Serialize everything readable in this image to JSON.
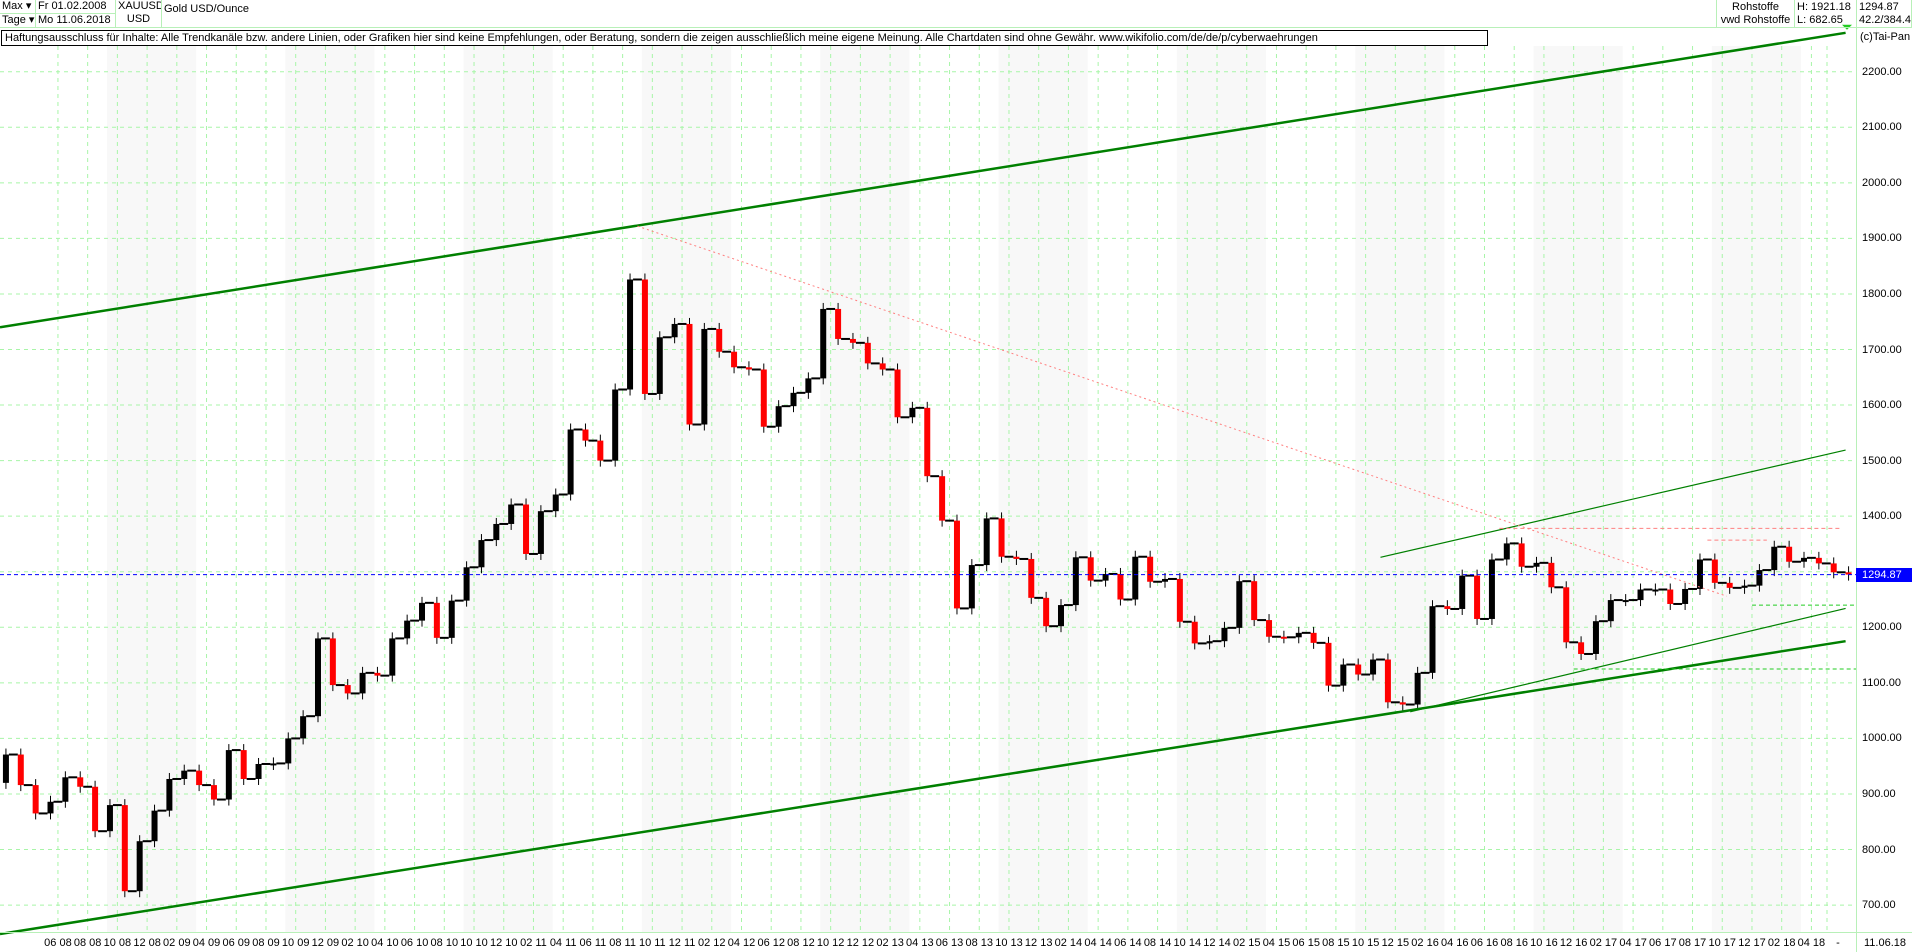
{
  "header": {
    "range_label": "Max",
    "interval_label": "Tage",
    "start_date": "Fr 01.02.2008",
    "end_date": "Mo 11.06.2018",
    "symbol": "XAUUSD",
    "currency": "USD",
    "instrument_name": "Gold USD/Ounce",
    "category": "Rohstoffe",
    "source": "vwd Rohstoffe",
    "high": "H: 1921.18",
    "low": "L: 682.65",
    "last": "1294.87",
    "stats": "42.2/384.4",
    "copyright": "(c)Tai-Pan"
  },
  "disclaimer": "Haftungsausschluss für Inhalte: Alle Trendkanäle bzw. andere Linien, oder Grafiken hier sind keine Empfehlungen, oder Beratung, sondern die zeigen ausschließlich meine eigene Meinung. Alle Chartdaten sind ohne Gewähr.  www.wikifolio.com/de/de/p/cyberwaehrungen",
  "colors": {
    "up": "#000000",
    "down": "#ff0000",
    "channel": "#008000",
    "grid": "#a8f5a8",
    "last_line": "#0000ff",
    "resistance": "#ff8080",
    "support": "#22cc22",
    "shade": "#f8f8f8"
  },
  "chart_data": {
    "type": "candlestick",
    "title": "Gold USD/Ounce",
    "x_start": "2008-02",
    "ylim": [
      630,
      2290
    ],
    "grid": true,
    "y_ticks": [
      "2200.00",
      "2100.00",
      "2000.00",
      "1900.00",
      "1800.00",
      "1700.00",
      "1600.00",
      "1500.00",
      "1400.00",
      "1300.00",
      "1200.00",
      "1100.00",
      "1000.00",
      "900.00",
      "800.00",
      "700.00"
    ],
    "x_ticks": [
      "06 08",
      "08 08",
      "10 08",
      "12 08",
      "02 09",
      "04 09",
      "06 09",
      "08 09",
      "10 09",
      "12 09",
      "02 10",
      "04 10",
      "06 10",
      "08 10",
      "10 10",
      "12 10",
      "02 11",
      "04 11",
      "06 11",
      "08 11",
      "10 11",
      "12 11",
      "02 12",
      "04 12",
      "06 12",
      "08 12",
      "10 12",
      "12 12",
      "02 13",
      "04 13",
      "06 13",
      "08 13",
      "10 13",
      "12 13",
      "02 14",
      "04 14",
      "06 14",
      "08 14",
      "10 14",
      "12 14",
      "02 15",
      "04 15",
      "06 15",
      "08 15",
      "10 15",
      "12 15",
      "02 16",
      "04 16",
      "06 16",
      "08 16",
      "10 16",
      "12 16",
      "02 17",
      "04 17",
      "06 17",
      "08 17",
      "10 17",
      "12 17",
      "02 18",
      "04 18"
    ],
    "x_end_label": "11.06.18",
    "x_end_dash": "-",
    "monthly_close": [
      971,
      916,
      865,
      886,
      930,
      913,
      833,
      880,
      725,
      815,
      870,
      927,
      942,
      916,
      890,
      979,
      927,
      954,
      955,
      1000,
      1040,
      1180,
      1096,
      1081,
      1118,
      1113,
      1180,
      1212,
      1244,
      1181,
      1248,
      1308,
      1357,
      1386,
      1421,
      1332,
      1409,
      1439,
      1556,
      1536,
      1500,
      1628,
      1826,
      1620,
      1722,
      1746,
      1565,
      1737,
      1696,
      1668,
      1664,
      1561,
      1598,
      1622,
      1648,
      1773,
      1719,
      1712,
      1675,
      1664,
      1578,
      1595,
      1472,
      1392,
      1234,
      1312,
      1396,
      1327,
      1323,
      1253,
      1202,
      1240,
      1326,
      1284,
      1296,
      1250,
      1327,
      1282,
      1287,
      1210,
      1171,
      1175,
      1199,
      1283,
      1213,
      1183,
      1182,
      1190,
      1172,
      1095,
      1133,
      1115,
      1142,
      1065,
      1061,
      1118,
      1238,
      1233,
      1293,
      1215,
      1322,
      1351,
      1309,
      1316,
      1272,
      1173,
      1152,
      1211,
      1249,
      1249,
      1268,
      1268,
      1242,
      1269,
      1322,
      1280,
      1271,
      1275,
      1303,
      1345,
      1318,
      1325,
      1315,
      1299,
      1294.87
    ],
    "open_first": 920,
    "last_value": 1294.87,
    "trendlines": [
      {
        "kind": "channel-upper",
        "from": [
          "2008-02",
          1740
        ],
        "to": [
          "2018-06",
          2270
        ]
      },
      {
        "kind": "channel-lower",
        "from": [
          "2008-02",
          648
        ],
        "to": [
          "2018-06",
          1175
        ]
      },
      {
        "kind": "thin-upper",
        "from": [
          "2015-11",
          1326
        ],
        "to": [
          "2018-06",
          1519
        ]
      },
      {
        "kind": "thin-lower",
        "from": [
          "2016-01",
          1048
        ],
        "to": [
          "2018-06",
          1234
        ]
      },
      {
        "kind": "downtrend",
        "from": [
          "2011-09",
          1922
        ],
        "to": [
          "2017-10",
          1256
        ]
      }
    ],
    "levels": [
      {
        "kind": "resistance",
        "price": 1378,
        "from": "2016-07",
        "to": "2018-06"
      },
      {
        "kind": "resistance",
        "price": 1357,
        "from": "2017-09",
        "to": "2018-01"
      },
      {
        "kind": "support",
        "price": 1240,
        "from": "2017-12",
        "to": "2018-07"
      },
      {
        "kind": "support",
        "price": 1125,
        "from": "2016-12",
        "to": "2018-07"
      }
    ]
  }
}
